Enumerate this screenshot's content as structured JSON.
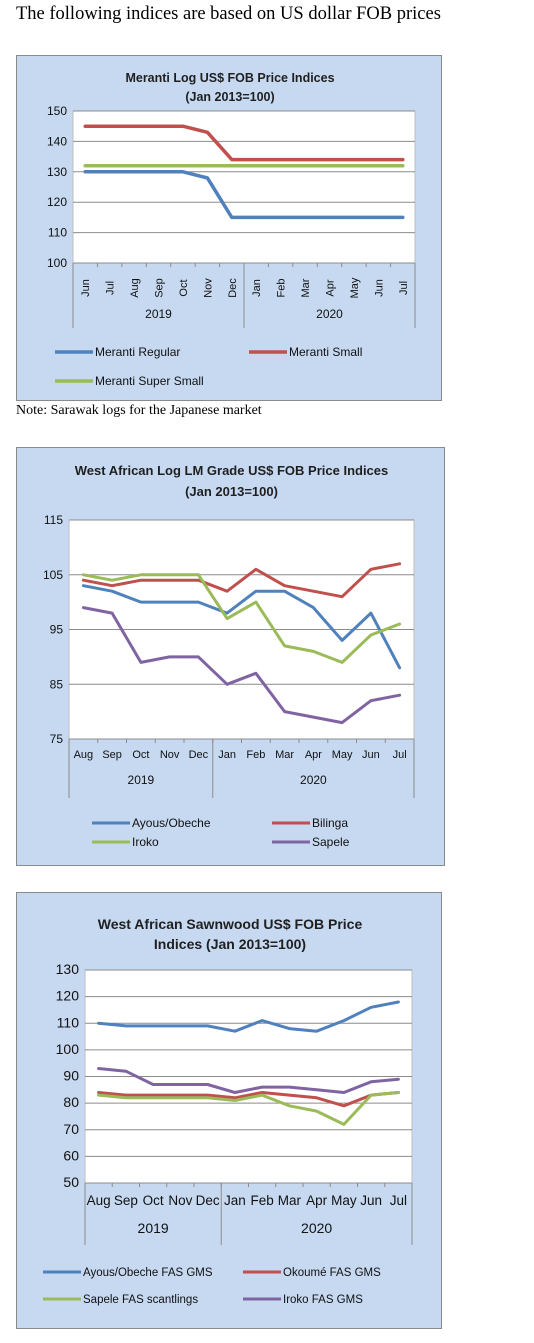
{
  "page": {
    "heading": "The following indices are based on US dollar FOB prices",
    "note": "Note: Sarawak logs for the Japanese market"
  },
  "chart_data": [
    {
      "type": "line",
      "title_lines": [
        "Meranti Log US$ FOB Price Indices",
        "(Jan 2013=100)"
      ],
      "categories": [
        "Jun",
        "Jul",
        "Aug",
        "Sep",
        "Oct",
        "Nov",
        "Dec",
        "Jan",
        "Feb",
        "Mar",
        "Apr",
        "May",
        "Jun",
        "Jul"
      ],
      "groups": [
        {
          "label": "2019",
          "start": 0,
          "end": 6
        },
        {
          "label": "2020",
          "start": 7,
          "end": 13
        }
      ],
      "ylim": [
        100,
        150
      ],
      "yticks": [
        100,
        110,
        120,
        130,
        140,
        150
      ],
      "x_labels_rotated": true,
      "legend": "bottom",
      "series": [
        {
          "name": "Meranti Regular",
          "color": "#4f81bd",
          "values": [
            130,
            130,
            130,
            130,
            130,
            128,
            115,
            115,
            115,
            115,
            115,
            115,
            115,
            115
          ]
        },
        {
          "name": "Meranti Small",
          "color": "#c0504d",
          "values": [
            145,
            145,
            145,
            145,
            145,
            143,
            134,
            134,
            134,
            134,
            134,
            134,
            134,
            134
          ]
        },
        {
          "name": "Meranti Super Small",
          "color": "#9bbb59",
          "values": [
            132,
            132,
            132,
            132,
            132,
            132,
            132,
            132,
            132,
            132,
            132,
            132,
            132,
            132
          ]
        }
      ]
    },
    {
      "type": "line",
      "title_lines": [
        "West African Log LM Grade US$ FOB Price Indices",
        "(Jan 2013=100)"
      ],
      "categories": [
        "Aug",
        "Sep",
        "Oct",
        "Nov",
        "Dec",
        "Jan",
        "Feb",
        "Mar",
        "Apr",
        "May",
        "Jun",
        "Jul"
      ],
      "groups": [
        {
          "label": "2019",
          "start": 0,
          "end": 4
        },
        {
          "label": "2020",
          "start": 5,
          "end": 11
        }
      ],
      "ylim": [
        75,
        115
      ],
      "yticks": [
        75,
        85,
        95,
        105,
        115
      ],
      "x_labels_rotated": false,
      "legend": "bottom",
      "series": [
        {
          "name": "Ayous/Obeche",
          "color": "#4f81bd",
          "values": [
            103,
            102,
            100,
            100,
            100,
            98,
            102,
            102,
            99,
            93,
            98,
            88
          ]
        },
        {
          "name": "Bilinga",
          "color": "#c0504d",
          "values": [
            104,
            103,
            104,
            104,
            104,
            102,
            106,
            103,
            102,
            101,
            106,
            107
          ]
        },
        {
          "name": "Iroko",
          "color": "#9bbb59",
          "values": [
            105,
            104,
            105,
            105,
            105,
            97,
            100,
            92,
            91,
            89,
            94,
            96
          ]
        },
        {
          "name": "Sapele",
          "color": "#8064a2",
          "values": [
            99,
            98,
            89,
            90,
            90,
            85,
            87,
            80,
            79,
            78,
            82,
            83
          ]
        }
      ]
    },
    {
      "type": "line",
      "title_lines": [
        "West African Sawnwood US$ FOB Price",
        "Indices (Jan 2013=100)"
      ],
      "categories": [
        "Aug",
        "Sep",
        "Oct",
        "Nov",
        "Dec",
        "Jan",
        "Feb",
        "Mar",
        "Apr",
        "May",
        "Jun",
        "Jul"
      ],
      "groups": [
        {
          "label": "2019",
          "start": 0,
          "end": 4
        },
        {
          "label": "2020",
          "start": 5,
          "end": 11
        }
      ],
      "ylim": [
        50,
        130
      ],
      "yticks": [
        50,
        60,
        70,
        80,
        90,
        100,
        110,
        120,
        130
      ],
      "x_labels_rotated": false,
      "legend": "bottom",
      "series": [
        {
          "name": "Ayous/Obeche FAS GMS",
          "color": "#4f81bd",
          "values": [
            110,
            109,
            109,
            109,
            109,
            107,
            111,
            108,
            107,
            111,
            116,
            118
          ]
        },
        {
          "name": "Okoumé FAS GMS",
          "color": "#c0504d",
          "values": [
            84,
            83,
            83,
            83,
            83,
            82,
            84,
            83,
            82,
            79,
            83,
            84
          ]
        },
        {
          "name": "Sapele FAS scantlings",
          "color": "#9bbb59",
          "values": [
            83,
            82,
            82,
            82,
            82,
            81,
            83,
            79,
            77,
            72,
            83,
            84
          ]
        },
        {
          "name": "Iroko FAS GMS",
          "color": "#8064a2",
          "values": [
            93,
            92,
            87,
            87,
            87,
            84,
            86,
            86,
            85,
            84,
            88,
            89
          ]
        }
      ]
    }
  ]
}
